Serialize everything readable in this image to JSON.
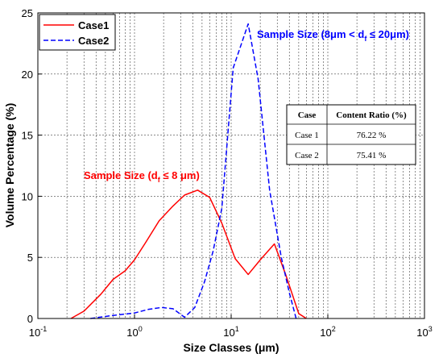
{
  "chart_data": {
    "type": "line",
    "xlabel": "Size Classes (μm)",
    "ylabel": "Volume Percentage (%)",
    "xscale": "log",
    "xlim": [
      0.1,
      1000
    ],
    "ylim": [
      0,
      25
    ],
    "grid": true,
    "x_ticks": [
      {
        "value": 0.1,
        "base": "10",
        "exp": "-1"
      },
      {
        "value": 1,
        "base": "10",
        "exp": "0"
      },
      {
        "value": 10,
        "base": "10",
        "exp": "1"
      },
      {
        "value": 100,
        "base": "10",
        "exp": "2"
      },
      {
        "value": 1000,
        "base": "10",
        "exp": "3"
      }
    ],
    "y_ticks": [
      "0",
      "5",
      "10",
      "15",
      "20",
      "25"
    ],
    "legend": {
      "placement": "top-left",
      "entries": [
        {
          "name": "Case1",
          "color": "#ff0000",
          "style": "solid"
        },
        {
          "name": "Case2",
          "color": "#0000ff",
          "style": "dashed"
        }
      ]
    },
    "series": [
      {
        "name": "Case1",
        "color": "#ff0000",
        "x": [
          0.22,
          0.3,
          0.45,
          0.6,
          0.8,
          1.0,
          1.3,
          1.8,
          2.5,
          3.3,
          4.5,
          6.0,
          8.0,
          11.0,
          15.0,
          20.0,
          28.0,
          37.0,
          50.0,
          60.0
        ],
        "y": [
          0.0,
          0.6,
          2.0,
          3.2,
          3.9,
          4.8,
          6.2,
          8.0,
          9.2,
          10.1,
          10.5,
          9.9,
          7.8,
          4.9,
          3.6,
          4.8,
          6.1,
          3.5,
          0.4,
          0.0
        ]
      },
      {
        "name": "Case2",
        "color": "#0000ff",
        "x": [
          0.35,
          0.6,
          1.0,
          1.4,
          1.9,
          2.5,
          3.3,
          4.2,
          5.3,
          6.5,
          8.0,
          10.5,
          15.0,
          19.0,
          25.0,
          33.0,
          40.0,
          47.0
        ],
        "y": [
          0.0,
          0.25,
          0.45,
          0.75,
          0.9,
          0.8,
          0.1,
          0.9,
          3.0,
          5.5,
          9.0,
          20.5,
          24.1,
          19.6,
          10.5,
          5.0,
          2.1,
          0.0
        ]
      }
    ],
    "annotations": [
      {
        "id": "a1",
        "pre": "Sample Size (d",
        "sub": "f",
        "post": " ≤ 8 μm)",
        "color": "#ff0000"
      },
      {
        "id": "a2",
        "pre": "Sample Size (8μm < d",
        "sub": "f",
        "post": " ≤ 20μm)",
        "color": "#0000ff"
      }
    ],
    "table": {
      "headers": [
        "Case",
        "Content Ratio (%)"
      ],
      "rows": [
        [
          "Case 1",
          "76.22 %"
        ],
        [
          "Case 2",
          "75.41 %"
        ]
      ]
    }
  }
}
